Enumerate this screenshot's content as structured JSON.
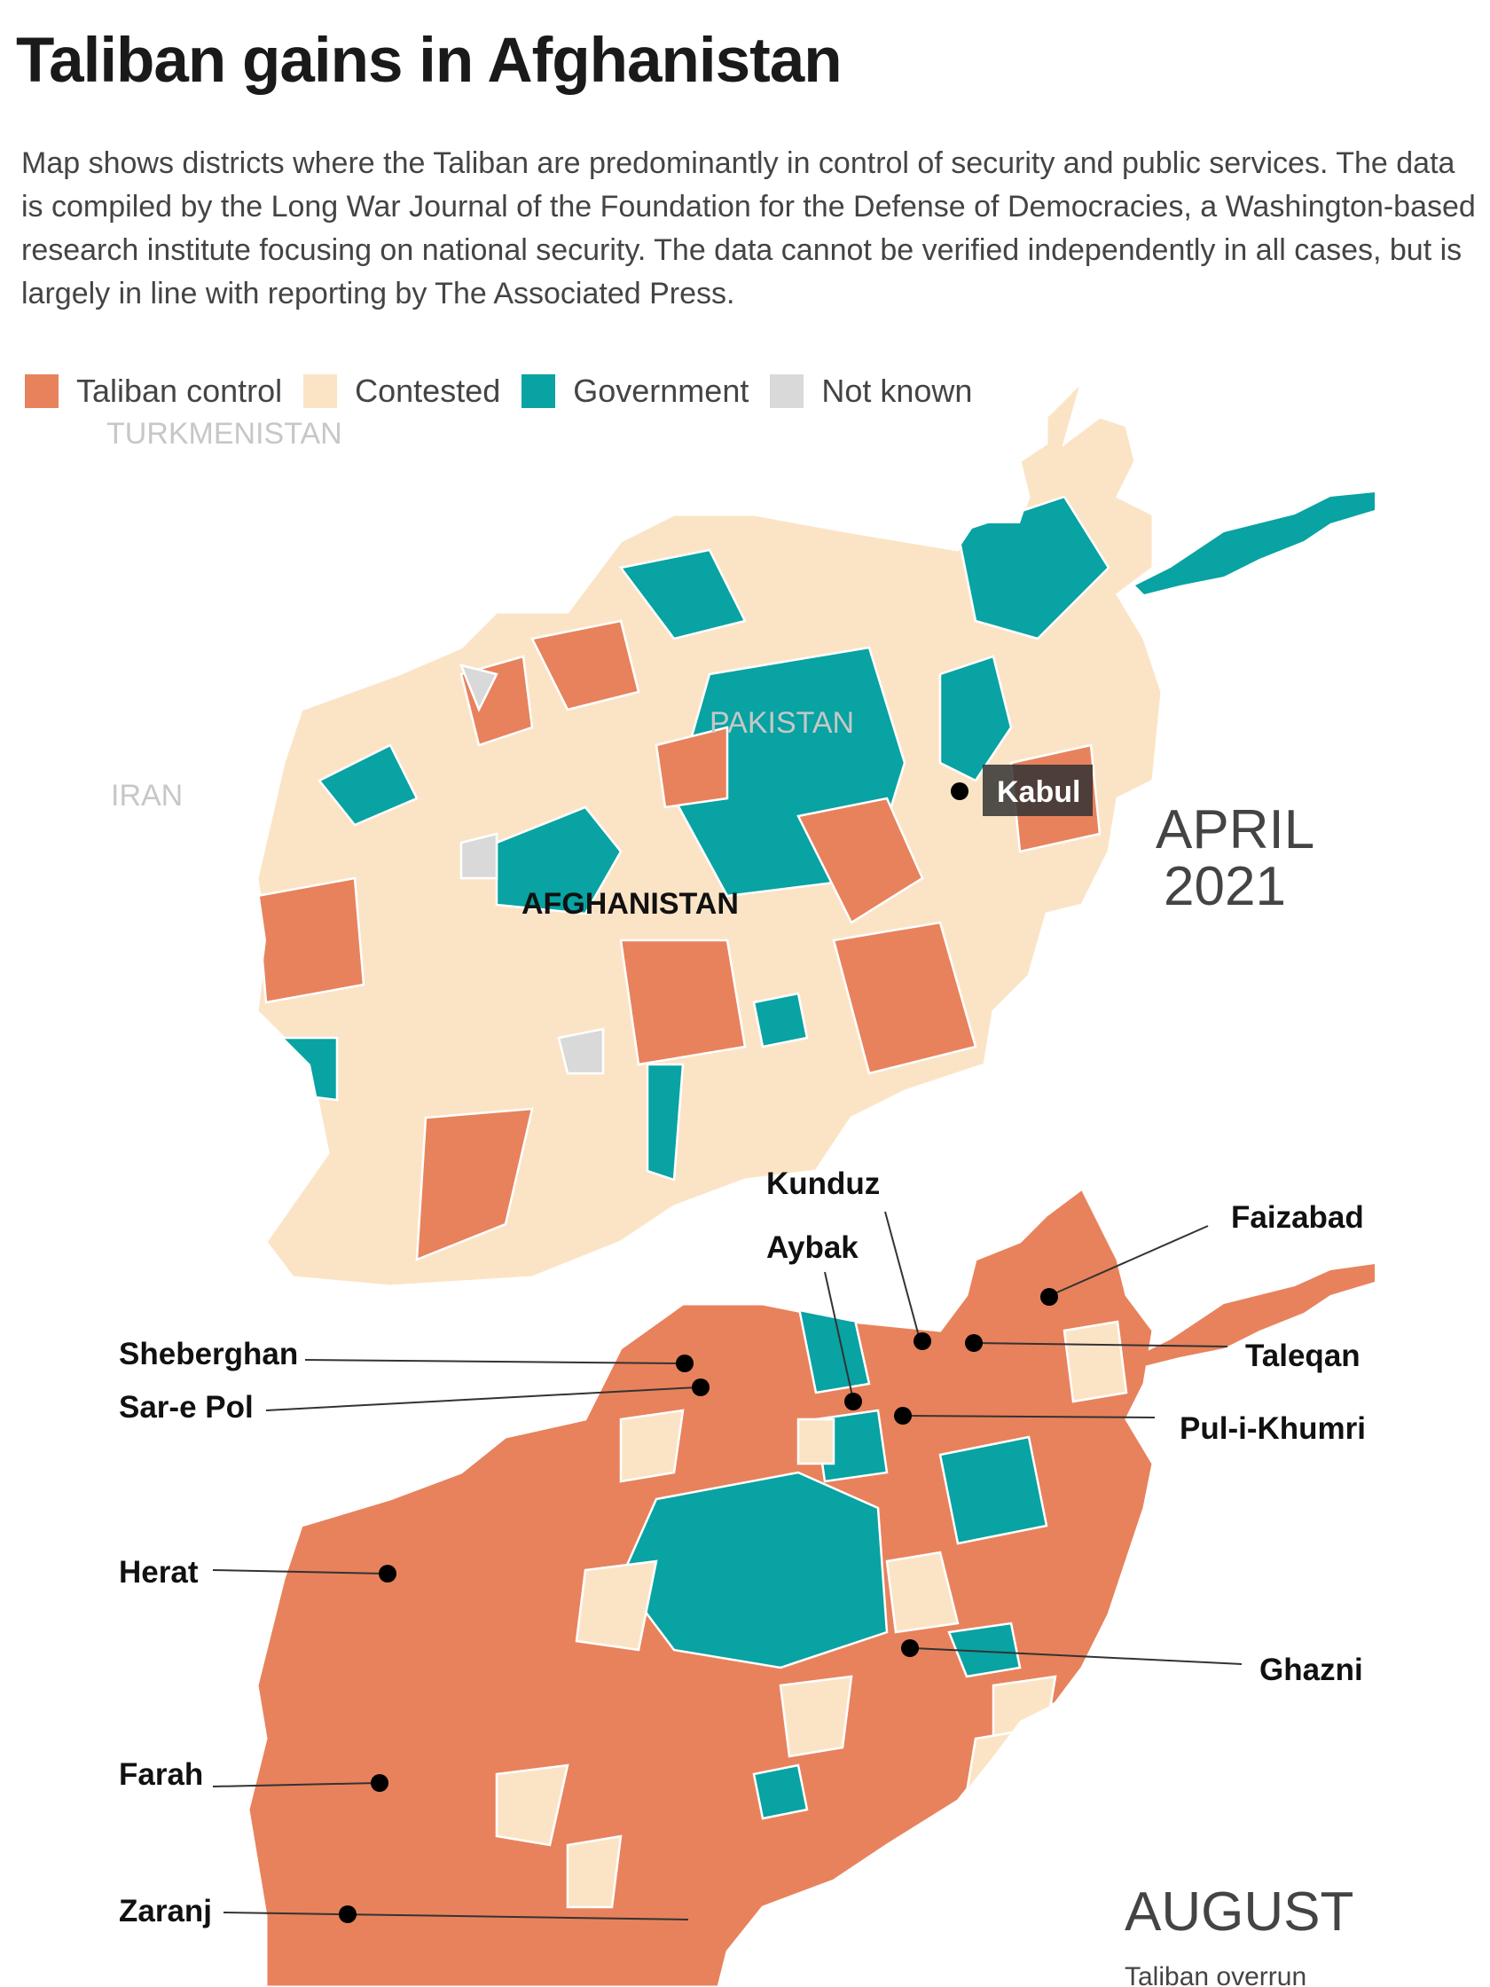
{
  "title": "Taliban gains in Afghanistan",
  "description": "Map shows districts where the Taliban are predominantly in control of security and public services. The data is compiled by the Long War Journal of the Foundation for the Defense of Democracies, a Washington-based research institute focusing on national security. The data cannot be verified independently in all cases, but is largely in line with reporting by The Associated Press.",
  "legend": [
    {
      "label": "Taliban control",
      "color": "#e8825c"
    },
    {
      "label": "Contested",
      "color": "#fbe4c6"
    },
    {
      "label": "Government",
      "color": "#08a3a2"
    },
    {
      "label": "Not known",
      "color": "#d9d9d9"
    }
  ],
  "map_april": {
    "period_line1": "APRIL",
    "period_line2": "2021",
    "neighbors": [
      "TURKMENISTAN",
      "PAKISTAN",
      "IRAN"
    ],
    "country_label": "AFGHANISTAN",
    "capital": "Kabul"
  },
  "map_august": {
    "period": "AUGUST",
    "subtitle": "Taliban overrun",
    "cities": [
      "Kunduz",
      "Aybak",
      "Faizabad",
      "Sheberghan",
      "Taleqan",
      "Sar-e Pol",
      "Pul-i-Khumri",
      "Herat",
      "Ghazni",
      "Farah",
      "Zaranj"
    ]
  }
}
